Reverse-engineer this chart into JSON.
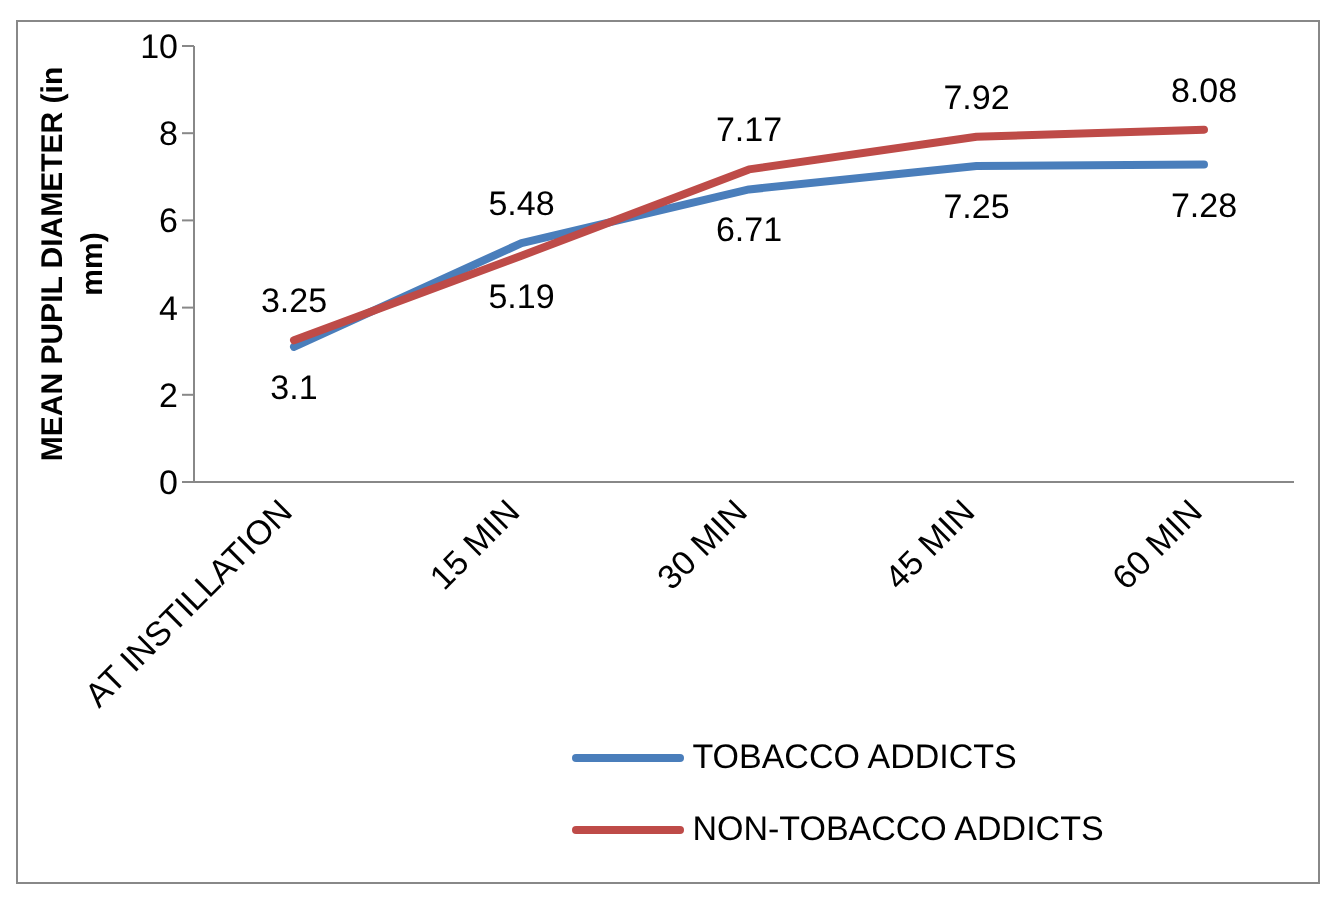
{
  "chart_data": {
    "type": "line",
    "ylabel": "MEAN PUPIL DIAMETER (in mm)",
    "categories": [
      "AT INSTILLATION",
      "15 MIN",
      "30 MIN",
      "45 MIN",
      "60 MIN"
    ],
    "series": [
      {
        "name": "TOBACCO ADDICTS",
        "color": "#4a7ebb",
        "values": [
          3.1,
          5.48,
          6.71,
          7.25,
          7.28
        ]
      },
      {
        "name": "NON-TOBACCO ADDICTS",
        "color": "#be4b48",
        "values": [
          3.25,
          5.19,
          7.17,
          7.92,
          8.08
        ]
      }
    ],
    "ylim": [
      0,
      10
    ],
    "yticks": [
      0,
      2,
      4,
      6,
      8,
      10
    ],
    "legend": "bottom",
    "marker": "none",
    "line_style": "solid",
    "data_labels": true
  }
}
